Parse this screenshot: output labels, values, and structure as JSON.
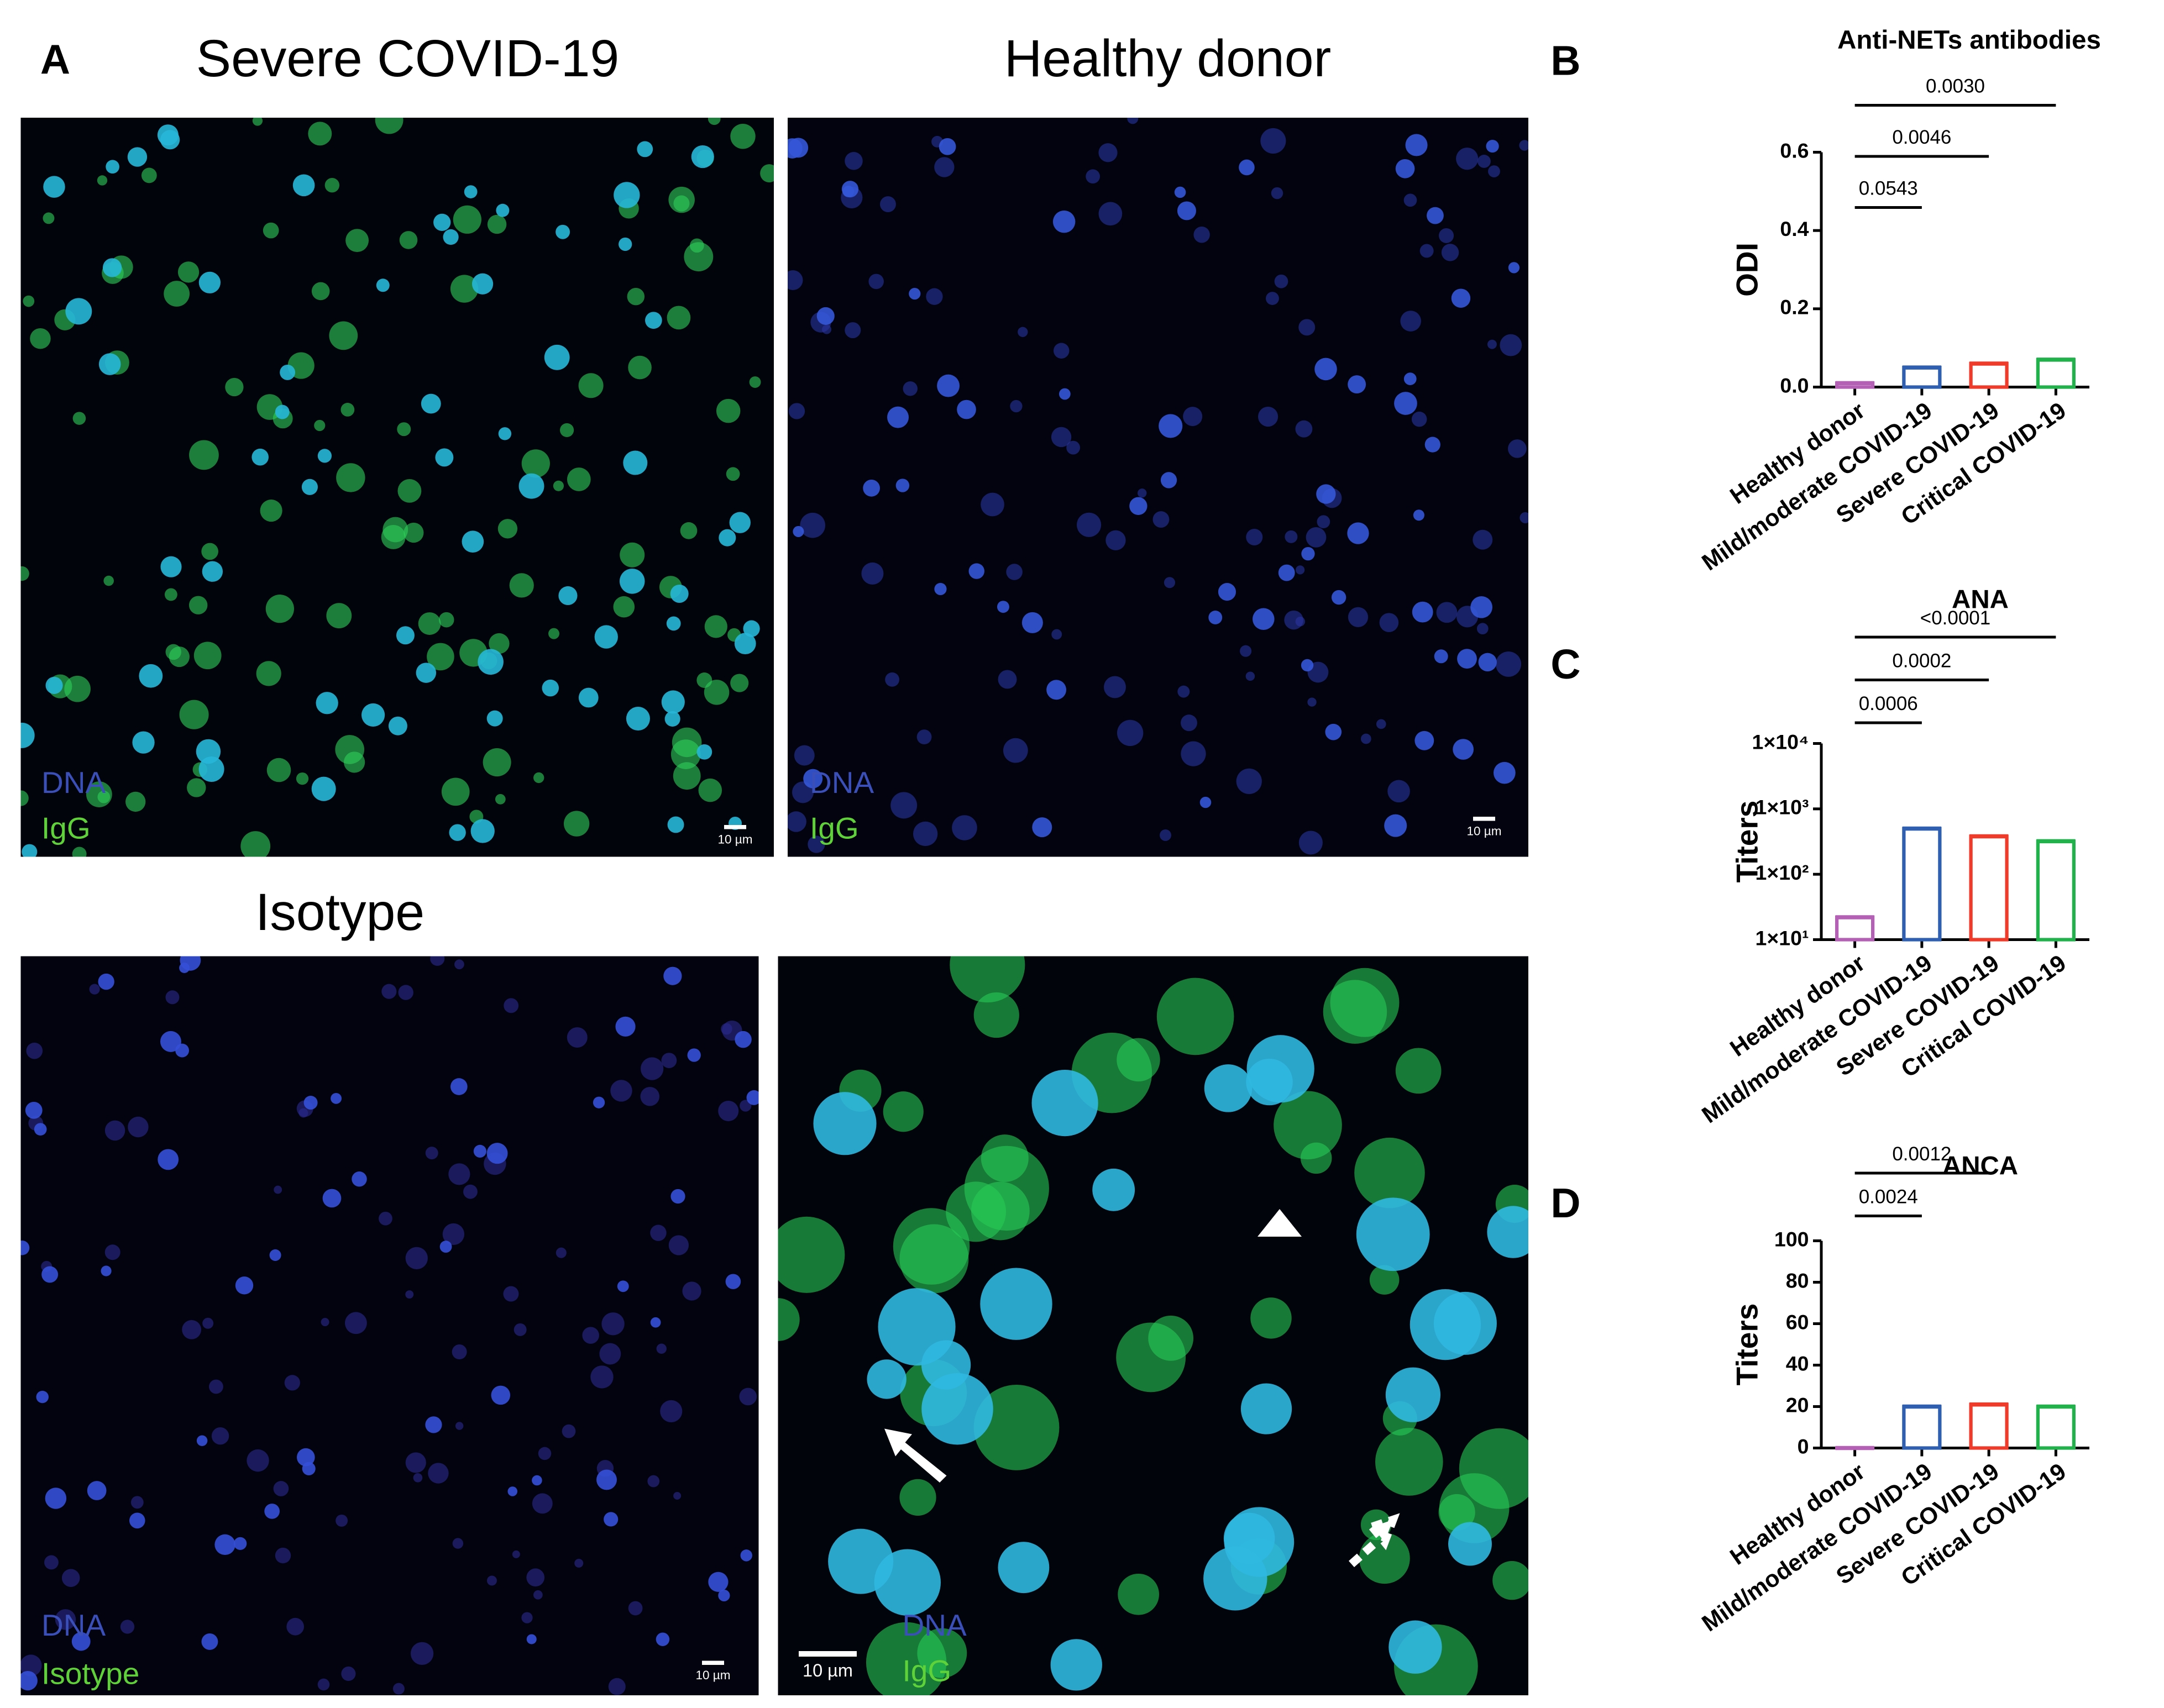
{
  "panel_letters": [
    "A",
    "B",
    "C",
    "D"
  ],
  "panels": [
    {
      "title": "Severe COVID-19",
      "labels": [
        "DNA",
        "IgG"
      ],
      "scale": "10 µm"
    },
    {
      "title": "Healthy donor",
      "labels": [
        "DNA",
        "IgG"
      ],
      "scale": "10 µm"
    },
    {
      "title": "Isotype",
      "labels": [
        "DNA",
        "Isotype"
      ],
      "scale": "10 µm"
    },
    {
      "labels": [
        "DNA",
        "IgG"
      ],
      "scale": "10 µm"
    }
  ],
  "chart_data": [
    {
      "type": "bar",
      "title": "Anti-NETs antibodies",
      "y_label": "ODI",
      "categories": [
        "Healthy donor",
        "Mild/moderate COVID-19",
        "Severe COVID-19",
        "Critical COVID-19"
      ],
      "values": [
        0.01,
        0.05,
        0.06,
        0.07
      ],
      "colors": [
        "#b460b4",
        "#2f5fb0",
        "#f03a2a",
        "#22b24c"
      ],
      "ylim": [
        0,
        0.6
      ],
      "yticks": [
        {
          "value": 0,
          "label": "0.0"
        },
        {
          "value": 0.2,
          "label": "0.2"
        },
        {
          "value": 0.4,
          "label": "0.4"
        },
        {
          "value": 0.6,
          "label": "0.6"
        }
      ],
      "annotations": [
        {
          "text": "0.0543",
          "from": "Healthy donor",
          "to": "Mild/moderate COVID-19"
        },
        {
          "text": "0.0046",
          "from": "Healthy donor",
          "to": "Severe COVID-19"
        },
        {
          "text": "0.0030",
          "from": "Healthy donor",
          "to": "Critical COVID-19"
        }
      ]
    },
    {
      "type": "bar",
      "title": "ANA",
      "y_label": "Titers",
      "log_scale": true,
      "categories": [
        "Healthy donor",
        "Mild/moderate COVID-19",
        "Severe COVID-19",
        "Critical COVID-19"
      ],
      "values": [
        22,
        500,
        380,
        320
      ],
      "colors": [
        "#b460b4",
        "#2f5fb0",
        "#f03a2a",
        "#22b24c"
      ],
      "ylim": [
        10,
        10000
      ],
      "yticks": [
        {
          "value": 10,
          "label": "1×10¹"
        },
        {
          "value": 100,
          "label": "1×10²"
        },
        {
          "value": 1000,
          "label": "1×10³"
        },
        {
          "value": 10000,
          "label": "1×10⁴"
        }
      ],
      "annotations": [
        {
          "text": "0.0006",
          "from": "Healthy donor",
          "to": "Mild/moderate COVID-19"
        },
        {
          "text": "0.0002",
          "from": "Healthy donor",
          "to": "Severe COVID-19"
        },
        {
          "text": "<0.0001",
          "from": "Healthy donor",
          "to": "Critical COVID-19"
        }
      ]
    },
    {
      "type": "bar",
      "title": "ANCA",
      "y_label": "Titers",
      "categories": [
        "Healthy donor",
        "Mild/moderate COVID-19",
        "Severe COVID-19",
        "Critical COVID-19"
      ],
      "values": [
        0,
        20,
        21,
        20
      ],
      "colors": [
        "#b460b4",
        "#2f5fb0",
        "#f03a2a",
        "#22b24c"
      ],
      "ylim": [
        0,
        100
      ],
      "yticks": [
        0,
        20,
        40,
        60,
        80,
        100
      ],
      "annotations": [
        {
          "text": "0.0024",
          "from": "Healthy donor",
          "to": "Mild/moderate COVID-19"
        },
        {
          "text": "0.0012",
          "from": "Healthy donor",
          "to": "Severe COVID-19"
        }
      ]
    }
  ]
}
